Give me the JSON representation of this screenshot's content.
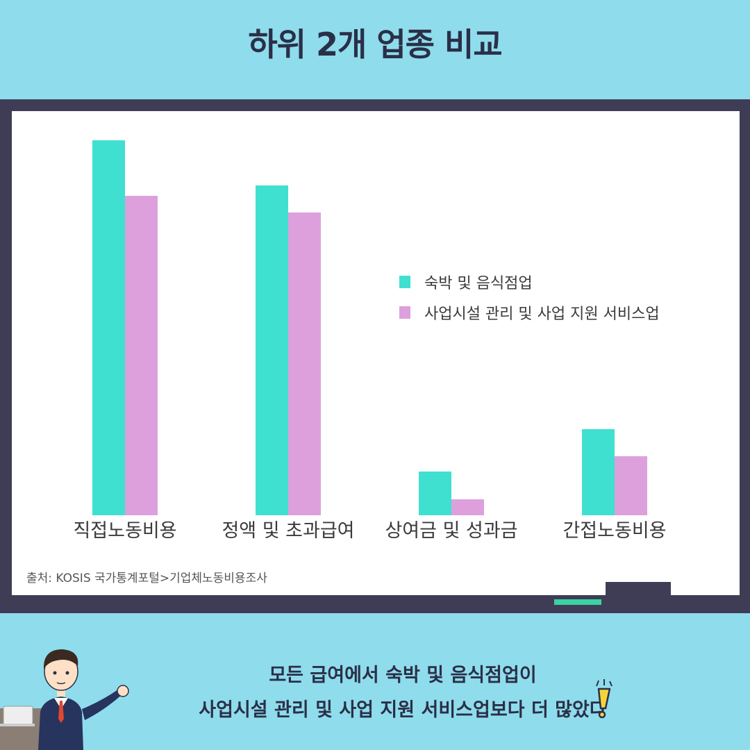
{
  "header": {
    "title": "하위 2개 업종 비교"
  },
  "chart_data": {
    "type": "bar",
    "categories": [
      "직접노동비용",
      "정액 및 초과급여",
      "상여금 및 성과금",
      "간접노동비용"
    ],
    "series": [
      {
        "name": "숙박 및 음식점업",
        "values": [
          540,
          475,
          63,
          124
        ]
      },
      {
        "name": "사업시설 관리 및 사업 지원 서비스업",
        "values": [
          460,
          436,
          23,
          85
        ]
      }
    ],
    "ylim": [
      0,
      560
    ],
    "grid": false,
    "legend_position": "right-middle",
    "colors": [
      "#40e0d0",
      "#dda0dd"
    ]
  },
  "source": "출처: KOSIS 국가통계포털>기업체노동비용조사",
  "caption": {
    "line1": "모든 급여에서 숙박 및 음식점업이",
    "line2": "사업시설 관리 및 사업 지원 서비스업보다 더 많았다"
  },
  "icons": [
    "presenter-illustration",
    "laptop-icon",
    "exclamation-icon"
  ]
}
